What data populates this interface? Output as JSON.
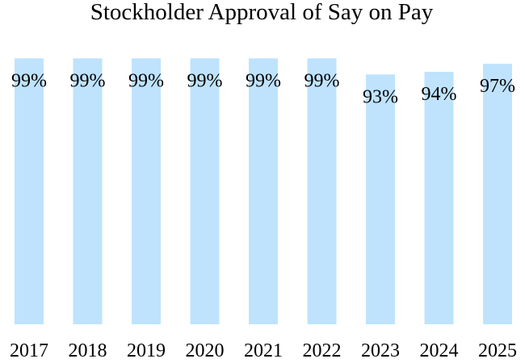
{
  "chart_data": {
    "type": "bar",
    "title": "Stockholder Approval of Say on Pay",
    "xlabel": "",
    "ylabel": "",
    "categories": [
      "2017",
      "2018",
      "2019",
      "2020",
      "2021",
      "2022",
      "2023",
      "2024",
      "2025"
    ],
    "values": [
      99,
      99,
      99,
      99,
      99,
      99,
      93,
      94,
      97
    ],
    "value_labels": [
      "99%",
      "99%",
      "99%",
      "99%",
      "99%",
      "99%",
      "93%",
      "94%",
      "97%"
    ],
    "ylim": [
      0,
      100
    ],
    "grid": false,
    "legend": "none",
    "colors": {
      "bar": "#bfe3fd",
      "text": "#000000"
    }
  }
}
